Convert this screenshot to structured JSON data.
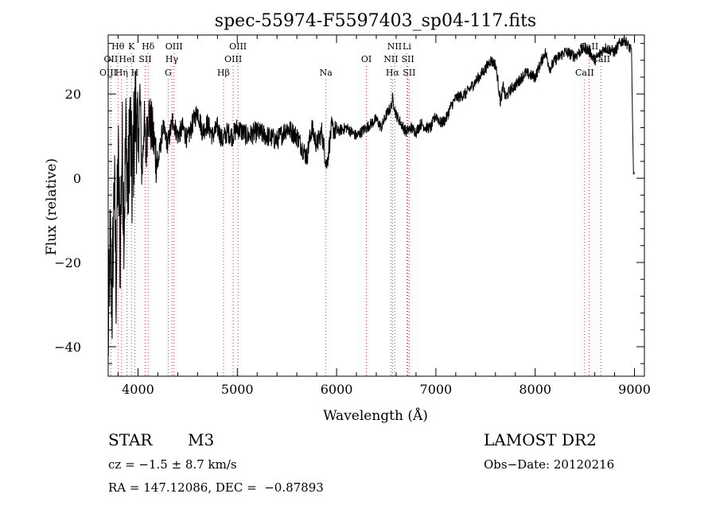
{
  "chart_data": {
    "type": "line",
    "title": "spec-55974-F5597403_sp04-117.fits",
    "xlabel": "Wavelength (Å)",
    "ylabel": "Flux (relative)",
    "xlim": [
      3700,
      9100
    ],
    "ylim": [
      -47,
      34
    ],
    "x_ticks": [
      4000,
      5000,
      6000,
      7000,
      8000,
      9000
    ],
    "y_ticks": [
      -40,
      -20,
      0,
      20
    ],
    "grid": false,
    "legend": "none",
    "series": [
      {
        "x": [
          3700,
          3720,
          3740,
          3760,
          3780,
          3800,
          3820,
          3840,
          3860,
          3880,
          3900,
          3920,
          3940,
          3960,
          3980,
          4000,
          4020,
          4040,
          4060,
          4080,
          4100,
          4150,
          4200,
          4250,
          4300,
          4350,
          4400,
          4450,
          4500,
          4550,
          4600,
          4650,
          4700,
          4750,
          4800,
          4850,
          4900,
          4950,
          5000,
          5100,
          5200,
          5300,
          5400,
          5500,
          5600,
          5700,
          5750,
          5800,
          5850,
          5900,
          5950,
          6000,
          6100,
          6200,
          6300,
          6400,
          6450,
          6500,
          6550,
          6563,
          6600,
          6650,
          6700,
          6750,
          6800,
          6850,
          6900,
          6950,
          7000,
          7050,
          7100,
          7150,
          7200,
          7300,
          7400,
          7500,
          7550,
          7600,
          7620,
          7650,
          7680,
          7700,
          7750,
          7800,
          7900,
          8000,
          8100,
          8150,
          8200,
          8300,
          8400,
          8500,
          8550,
          8600,
          8700,
          8800,
          8850,
          8900,
          8950,
          8970,
          8980,
          8990,
          9000
        ],
        "values": [
          -40,
          -15,
          -30,
          0,
          -25,
          5,
          -18,
          8,
          -10,
          12,
          -5,
          15,
          -2,
          10,
          18,
          5,
          20,
          0,
          14,
          5,
          16,
          10,
          3,
          12,
          8,
          14,
          10,
          12,
          9,
          13,
          16,
          11,
          13,
          10,
          12,
          9,
          11,
          10,
          12,
          10,
          11,
          10,
          9,
          12,
          10,
          5,
          12,
          8,
          11,
          3,
          12,
          11,
          12,
          10,
          12,
          14,
          12,
          15,
          17,
          19,
          15,
          13,
          11,
          12,
          11,
          13,
          12,
          12,
          15,
          13,
          14,
          17,
          19,
          20,
          23,
          26,
          28,
          27,
          24,
          18,
          22,
          19,
          21,
          22,
          25,
          24,
          30,
          26,
          28,
          30,
          29,
          31,
          30,
          28,
          31,
          30,
          32,
          33,
          31,
          30,
          15,
          1,
          1
        ],
        "color": "#000000"
      }
    ],
    "line_markers": [
      {
        "label": "Hθ",
        "wl": 3798,
        "row": 0
      },
      {
        "label": "K",
        "wl": 3934,
        "row": 0
      },
      {
        "label": "Hδ",
        "wl": 4102,
        "row": 0
      },
      {
        "label": "OIII",
        "wl": 4363,
        "row": 0
      },
      {
        "label": "OIII",
        "wl": 5007,
        "row": 0
      },
      {
        "label": "NII",
        "wl": 6584,
        "row": 0
      },
      {
        "label": "Li",
        "wl": 6708,
        "row": 0
      },
      {
        "label": "CaII",
        "wl": 8542,
        "row": 0
      },
      {
        "label": "OII",
        "wl": 3727,
        "row": 1
      },
      {
        "label": "HeI",
        "wl": 3889,
        "row": 1
      },
      {
        "label": "SII",
        "wl": 4072,
        "row": 1
      },
      {
        "label": "Hγ",
        "wl": 4341,
        "row": 1
      },
      {
        "label": "OIII",
        "wl": 4959,
        "row": 1
      },
      {
        "label": "OI",
        "wl": 6300,
        "row": 1
      },
      {
        "label": "NII",
        "wl": 6548,
        "row": 1
      },
      {
        "label": "SII",
        "wl": 6717,
        "row": 1
      },
      {
        "label": "CaII",
        "wl": 8662,
        "row": 1
      },
      {
        "label": "OIII",
        "wl": 3700,
        "row": 2
      },
      {
        "label": "Hη",
        "wl": 3835,
        "row": 2
      },
      {
        "label": "H",
        "wl": 3968,
        "row": 2
      },
      {
        "label": "G",
        "wl": 4304,
        "row": 2
      },
      {
        "label": "Hβ",
        "wl": 4861,
        "row": 2
      },
      {
        "label": "Na",
        "wl": 5893,
        "row": 2
      },
      {
        "label": "Hα",
        "wl": 6563,
        "row": 2
      },
      {
        "label": "SII",
        "wl": 6731,
        "row": 2
      },
      {
        "label": "CaII",
        "wl": 8498,
        "row": 2
      }
    ]
  },
  "info": {
    "object_class": "STAR",
    "subclass": "M3",
    "cz": "cz = −1.5 ± 8.7 km/s",
    "coords": "RA = 147.12086, DEC =  −0.87893",
    "survey": "LAMOST DR2",
    "obs_date": "Obs−Date: 20120216"
  }
}
